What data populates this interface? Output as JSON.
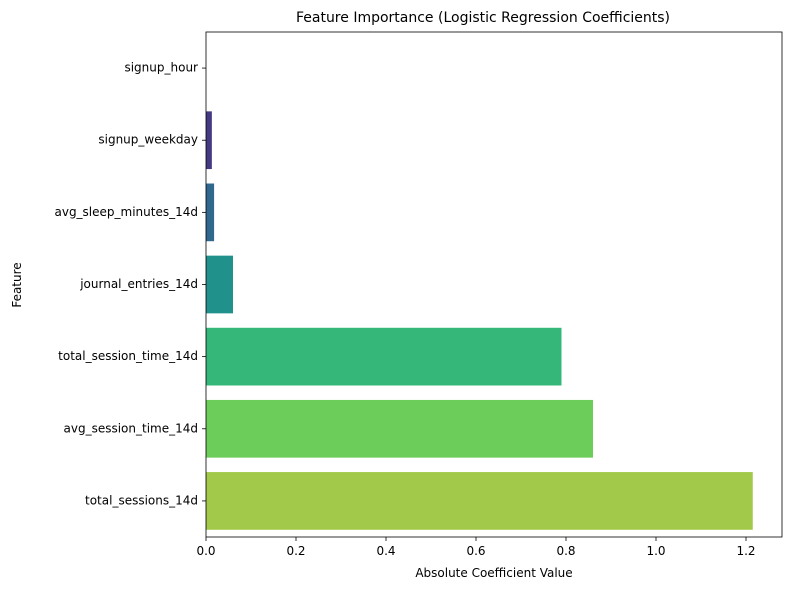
{
  "chart_data": {
    "type": "bar",
    "orientation": "horizontal",
    "title": "Feature Importance (Logistic Regression Coefficients)",
    "xlabel": "Absolute Coefficient Value",
    "ylabel": "Feature",
    "categories": [
      "signup_hour",
      "signup_weekday",
      "avg_sleep_minutes_14d",
      "journal_entries_14d",
      "total_session_time_14d",
      "avg_session_time_14d",
      "total_sessions_14d"
    ],
    "values": [
      0.0,
      0.013,
      0.018,
      0.06,
      0.79,
      0.86,
      1.215
    ],
    "colors": [
      "#440154",
      "#443983",
      "#31688e",
      "#21918c",
      "#35b779",
      "#6ccd5a",
      "#a2c94a"
    ],
    "xlim": [
      0,
      1.28
    ],
    "xticks": [
      0.0,
      0.2,
      0.4,
      0.6,
      0.8,
      1.0,
      1.2
    ],
    "xtick_labels": [
      "0.0",
      "0.2",
      "0.4",
      "0.6",
      "0.8",
      "1.0",
      "1.2"
    ],
    "grid": false,
    "legend": "none"
  }
}
